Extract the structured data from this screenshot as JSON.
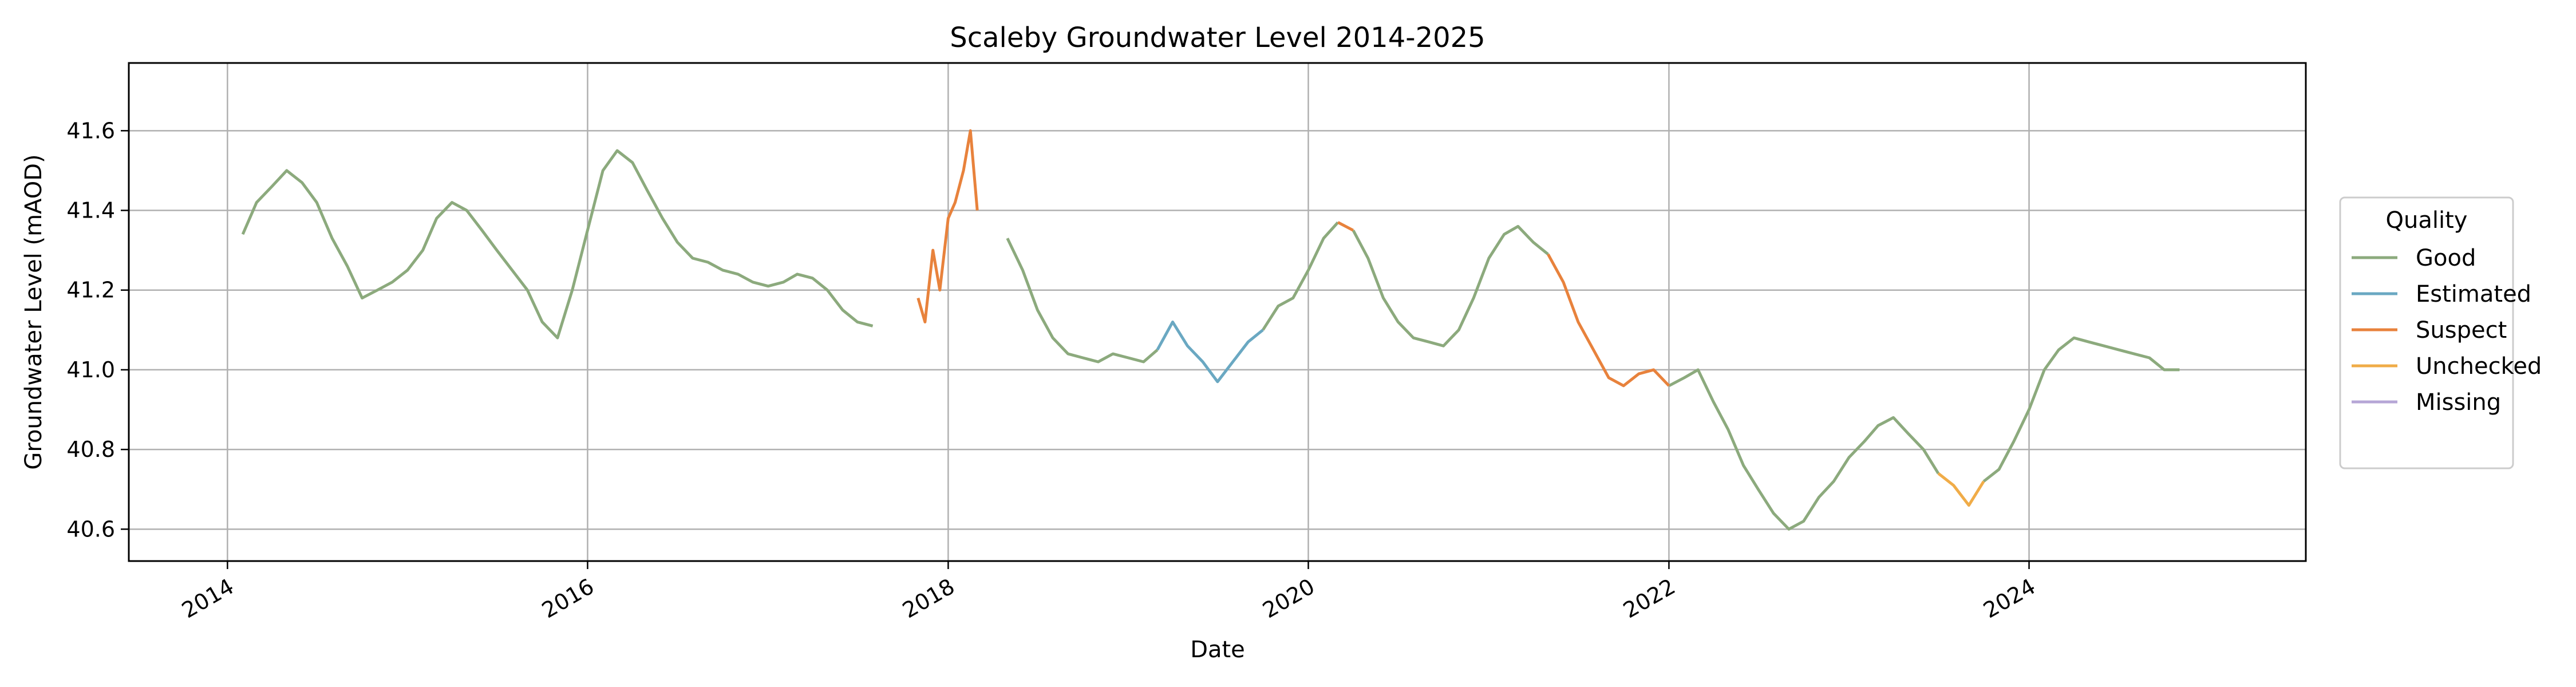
{
  "chart_data": {
    "type": "line",
    "title": "Scaleby Groundwater Level 2014-2025",
    "xlabel": "Date",
    "ylabel": "Groundwater Level (mAOD)",
    "xlim": [
      "2013-06-15",
      "2025-07-15"
    ],
    "ylim": [
      40.52,
      41.77
    ],
    "x_ticks": [
      "2014",
      "2016",
      "2018",
      "2020",
      "2022",
      "2024"
    ],
    "y_ticks": [
      "40.6",
      "40.8",
      "41.0",
      "41.2",
      "41.4",
      "41.6"
    ],
    "grid": true,
    "legend": {
      "title": "Quality",
      "placement": "outside-right",
      "entries": [
        "Good",
        "Estimated",
        "Suspect",
        "Unchecked",
        "Missing"
      ]
    },
    "series": [
      {
        "name": "Good",
        "color": "#8caa7d",
        "segments": [
          [
            [
              "2014-02-01",
              41.34
            ],
            [
              "2014-03-01",
              41.42
            ],
            [
              "2014-04-01",
              41.46
            ],
            [
              "2014-05-01",
              41.5
            ],
            [
              "2014-06-01",
              41.47
            ],
            [
              "2014-07-01",
              41.42
            ],
            [
              "2014-08-01",
              41.33
            ],
            [
              "2014-09-01",
              41.26
            ],
            [
              "2014-10-01",
              41.18
            ],
            [
              "2014-11-01",
              41.2
            ],
            [
              "2014-12-01",
              41.22
            ],
            [
              "2015-01-01",
              41.25
            ],
            [
              "2015-02-01",
              41.3
            ],
            [
              "2015-03-01",
              41.38
            ],
            [
              "2015-04-01",
              41.42
            ],
            [
              "2015-05-01",
              41.4
            ],
            [
              "2015-06-01",
              41.35
            ],
            [
              "2015-07-01",
              41.3
            ],
            [
              "2015-08-01",
              41.25
            ],
            [
              "2015-09-01",
              41.2
            ],
            [
              "2015-10-01",
              41.12
            ],
            [
              "2015-11-01",
              41.08
            ],
            [
              "2015-12-01",
              41.2
            ],
            [
              "2016-01-01",
              41.35
            ],
            [
              "2016-02-01",
              41.5
            ],
            [
              "2016-03-01",
              41.55
            ],
            [
              "2016-04-01",
              41.52
            ],
            [
              "2016-05-01",
              41.45
            ],
            [
              "2016-06-01",
              41.38
            ],
            [
              "2016-07-01",
              41.32
            ],
            [
              "2016-08-01",
              41.28
            ],
            [
              "2016-09-01",
              41.27
            ],
            [
              "2016-10-01",
              41.25
            ],
            [
              "2016-11-01",
              41.24
            ],
            [
              "2016-12-01",
              41.22
            ],
            [
              "2017-01-01",
              41.21
            ],
            [
              "2017-02-01",
              41.22
            ],
            [
              "2017-03-01",
              41.24
            ],
            [
              "2017-04-01",
              41.23
            ],
            [
              "2017-05-01",
              41.2
            ],
            [
              "2017-06-01",
              41.15
            ],
            [
              "2017-07-01",
              41.12
            ],
            [
              "2017-08-01",
              41.11
            ]
          ],
          [
            [
              "2018-05-01",
              41.33
            ],
            [
              "2018-06-01",
              41.25
            ],
            [
              "2018-07-01",
              41.15
            ],
            [
              "2018-08-01",
              41.08
            ],
            [
              "2018-09-01",
              41.04
            ],
            [
              "2018-10-01",
              41.03
            ],
            [
              "2018-11-01",
              41.02
            ],
            [
              "2018-12-01",
              41.04
            ],
            [
              "2019-01-01",
              41.03
            ],
            [
              "2019-02-01",
              41.02
            ],
            [
              "2019-03-01",
              41.05
            ]
          ],
          [
            [
              "2019-10-01",
              41.1
            ],
            [
              "2019-11-01",
              41.16
            ],
            [
              "2019-12-01",
              41.18
            ],
            [
              "2020-01-01",
              41.25
            ],
            [
              "2020-02-01",
              41.33
            ],
            [
              "2020-03-01",
              41.37
            ]
          ],
          [
            [
              "2020-04-01",
              41.35
            ],
            [
              "2020-05-01",
              41.28
            ],
            [
              "2020-06-01",
              41.18
            ],
            [
              "2020-07-01",
              41.12
            ],
            [
              "2020-08-01",
              41.08
            ],
            [
              "2020-09-01",
              41.07
            ],
            [
              "2020-10-01",
              41.06
            ],
            [
              "2020-11-01",
              41.1
            ],
            [
              "2020-12-01",
              41.18
            ],
            [
              "2021-01-01",
              41.28
            ],
            [
              "2021-02-01",
              41.34
            ],
            [
              "2021-03-01",
              41.36
            ],
            [
              "2021-04-01",
              41.32
            ],
            [
              "2021-05-01",
              41.29
            ]
          ],
          [
            [
              "2022-01-01",
              40.96
            ],
            [
              "2022-02-01",
              40.98
            ],
            [
              "2022-03-01",
              41.0
            ],
            [
              "2022-04-01",
              40.92
            ],
            [
              "2022-05-01",
              40.85
            ],
            [
              "2022-06-01",
              40.76
            ],
            [
              "2022-07-01",
              40.7
            ],
            [
              "2022-08-01",
              40.64
            ],
            [
              "2022-09-01",
              40.6
            ],
            [
              "2022-10-01",
              40.62
            ],
            [
              "2022-11-01",
              40.68
            ],
            [
              "2022-12-01",
              40.72
            ],
            [
              "2023-01-01",
              40.78
            ],
            [
              "2023-02-01",
              40.82
            ],
            [
              "2023-03-01",
              40.86
            ],
            [
              "2023-04-01",
              40.88
            ],
            [
              "2023-05-01",
              40.84
            ],
            [
              "2023-06-01",
              40.8
            ],
            [
              "2023-07-01",
              40.74
            ]
          ],
          [
            [
              "2023-10-01",
              40.72
            ],
            [
              "2023-11-01",
              40.75
            ],
            [
              "2023-12-01",
              40.82
            ],
            [
              "2024-01-01",
              40.9
            ],
            [
              "2024-02-01",
              41.0
            ],
            [
              "2024-03-01",
              41.05
            ],
            [
              "2024-04-01",
              41.08
            ],
            [
              "2024-05-01",
              41.07
            ],
            [
              "2024-06-01",
              41.06
            ],
            [
              "2024-07-01",
              41.05
            ],
            [
              "2024-08-01",
              41.04
            ],
            [
              "2024-09-01",
              41.03
            ],
            [
              "2024-10-01",
              41.0
            ],
            [
              "2024-11-01",
              41.0
            ]
          ]
        ]
      },
      {
        "name": "Estimated",
        "color": "#6aa8c2",
        "segments": [
          [
            [
              "2019-03-01",
              41.05
            ],
            [
              "2019-04-01",
              41.12
            ],
            [
              "2019-05-01",
              41.06
            ],
            [
              "2019-06-01",
              41.02
            ],
            [
              "2019-07-01",
              40.97
            ],
            [
              "2019-08-01",
              41.02
            ],
            [
              "2019-09-01",
              41.07
            ],
            [
              "2019-10-01",
              41.1
            ]
          ]
        ]
      },
      {
        "name": "Suspect",
        "color": "#e8823c",
        "segments": [
          [
            [
              "2017-11-01",
              41.18
            ],
            [
              "2017-11-15",
              41.12
            ],
            [
              "2017-12-01",
              41.3
            ],
            [
              "2017-12-15",
              41.2
            ],
            [
              "2018-01-01",
              41.38
            ],
            [
              "2018-01-15",
              41.42
            ],
            [
              "2018-02-01",
              41.5
            ],
            [
              "2018-02-15",
              41.6
            ],
            [
              "2018-03-01",
              41.4
            ]
          ],
          [
            [
              "2020-03-01",
              41.37
            ],
            [
              "2020-04-01",
              41.35
            ]
          ],
          [
            [
              "2021-05-01",
              41.29
            ],
            [
              "2021-06-01",
              41.22
            ],
            [
              "2021-07-01",
              41.12
            ],
            [
              "2021-08-01",
              41.05
            ],
            [
              "2021-09-01",
              40.98
            ],
            [
              "2021-10-01",
              40.96
            ],
            [
              "2021-11-01",
              40.99
            ],
            [
              "2021-12-01",
              41.0
            ],
            [
              "2022-01-01",
              40.96
            ]
          ]
        ]
      },
      {
        "name": "Unchecked",
        "color": "#f0ac48",
        "segments": [
          [
            [
              "2023-07-01",
              40.74
            ],
            [
              "2023-08-01",
              40.71
            ],
            [
              "2023-09-01",
              40.66
            ],
            [
              "2023-10-01",
              40.72
            ]
          ]
        ]
      },
      {
        "name": "Missing",
        "color": "#b6a6d6",
        "segments": []
      }
    ]
  }
}
